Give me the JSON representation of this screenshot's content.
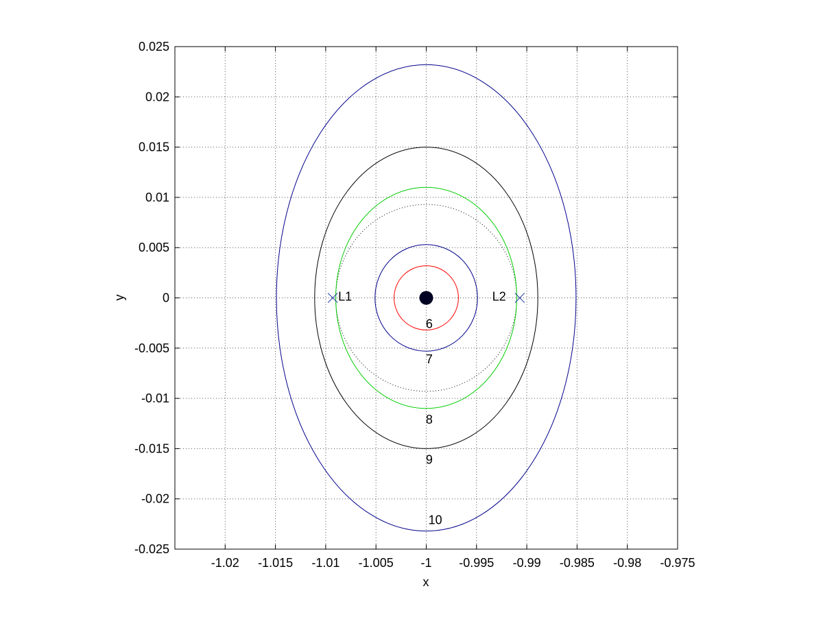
{
  "chart_data": {
    "type": "line",
    "title": "",
    "xlabel": "x",
    "ylabel": "y",
    "xlim": [
      -1.025,
      -0.975
    ],
    "ylim": [
      -0.025,
      0.025
    ],
    "grid": true,
    "x_ticks": [
      -1.02,
      -1.015,
      -1.01,
      -1.005,
      -1,
      -0.995,
      -0.99,
      -0.985,
      -0.98,
      -0.975
    ],
    "x_tick_labels": [
      "-1.02",
      "-1.015",
      "-1.01",
      "-1.005",
      "-1",
      "-0.995",
      "-0.99",
      "-0.985",
      "-0.98",
      "-0.975"
    ],
    "y_ticks": [
      0.025,
      0.02,
      0.015,
      0.01,
      0.005,
      0,
      -0.005,
      -0.01,
      -0.015,
      -0.02,
      -0.025
    ],
    "y_tick_labels": [
      "0.025",
      "0.02",
      "0.015",
      "0.01",
      "0.005",
      "0",
      "-0.005",
      "-0.01",
      "-0.015",
      "-0.02",
      "-0.025"
    ],
    "center": [
      -1,
      0
    ],
    "curves": [
      {
        "label": "6",
        "color": "#ff0000",
        "rx": 0.0032,
        "ry": 0.0032,
        "style": "solid",
        "label_at": [
          -0.9997,
          -0.0026
        ]
      },
      {
        "label": "7",
        "color": "#00008b",
        "rx": 0.0051,
        "ry": 0.0053,
        "style": "solid",
        "label_at": [
          -0.9997,
          -0.0061
        ]
      },
      {
        "label": "",
        "color": "#000000",
        "rx": 0.009,
        "ry": 0.0093,
        "style": "dotted",
        "label_at": null
      },
      {
        "label": "8",
        "color": "#00cc00",
        "rx": 0.009,
        "ry": 0.011,
        "style": "solid",
        "label_at": [
          -0.9997,
          -0.0121
        ]
      },
      {
        "label": "9",
        "color": "#000000",
        "rx": 0.0111,
        "ry": 0.015,
        "style": "solid",
        "label_at": [
          -0.9997,
          -0.0161
        ]
      },
      {
        "label": "10",
        "color": "#00008b",
        "rx": 0.0149,
        "ry": 0.0232,
        "style": "solid",
        "label_at": [
          -0.9991,
          -0.0221
        ]
      }
    ],
    "primary": {
      "x": -1,
      "y": 0,
      "color": "#000022"
    },
    "points": [
      {
        "label": "L1",
        "x": -1.0093,
        "y": 0,
        "marker": "x",
        "color": "#1f3f9f"
      },
      {
        "label": "L2",
        "x": -0.9907,
        "y": 0,
        "marker": "x",
        "color": "#1f3f9f"
      }
    ]
  }
}
